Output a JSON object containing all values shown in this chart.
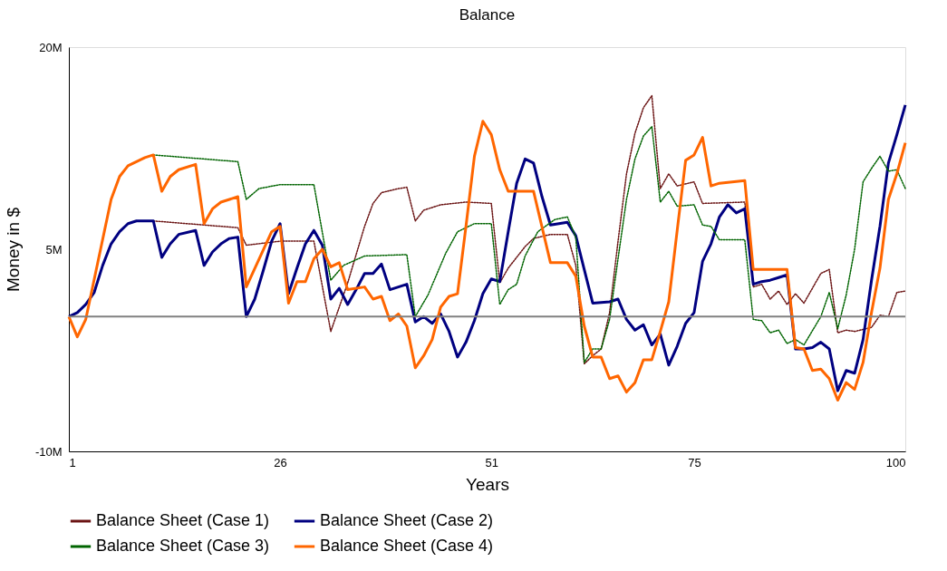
{
  "chart_data": {
    "type": "line",
    "title": "Balance",
    "xlabel": "Years",
    "ylabel": "Money in $",
    "xlim": [
      1,
      100
    ],
    "xticks": [
      1,
      26,
      51,
      75,
      100
    ],
    "ylim": [
      -10,
      20
    ],
    "yticks": [
      {
        "value": -10,
        "label": "-10M"
      },
      {
        "value": 5,
        "label": "5M"
      },
      {
        "value": 20,
        "label": "20M"
      }
    ],
    "grid": false,
    "legend": "bottom",
    "marker": "none",
    "ref_lines": [
      {
        "axis": "y",
        "value": 0,
        "label": null,
        "color": "#808080"
      }
    ],
    "series": [
      {
        "name": "Balance Sheet (Case 1)",
        "color": "#6b1414",
        "line_style": "dotted",
        "x": [
          11,
          21,
          22,
          26,
          30,
          32,
          33,
          34,
          36,
          37,
          38,
          40,
          41,
          42,
          43,
          45,
          48,
          51,
          52,
          53,
          55,
          56,
          58,
          60,
          61,
          62,
          63,
          64,
          65,
          66,
          67,
          68,
          69,
          70,
          71,
          72,
          73,
          75,
          76,
          81,
          82,
          83,
          84,
          85,
          86,
          87,
          88,
          90,
          91,
          92,
          93,
          94,
          96,
          97,
          98,
          99,
          100
        ],
        "values": [
          7.1,
          6.6,
          5.3,
          5.6,
          5.6,
          -1.1,
          0.7,
          2.5,
          6.7,
          8.4,
          9.2,
          9.5,
          9.6,
          7.1,
          7.9,
          8.3,
          8.5,
          8.4,
          2.5,
          3.6,
          5.2,
          5.8,
          6.1,
          6.1,
          3.8,
          -3.5,
          -2.9,
          -2.4,
          0.3,
          5.6,
          10.6,
          13.6,
          15.5,
          16.4,
          9.5,
          10.6,
          9.7,
          10.0,
          8.4,
          8.5,
          2.2,
          2.4,
          1.3,
          1.9,
          0.9,
          1.7,
          1.0,
          3.2,
          3.5,
          -1.2,
          -1.0,
          -1.1,
          -0.8,
          0.1,
          0,
          1.8,
          1.9
        ]
      },
      {
        "name": "Balance Sheet (Case 2)",
        "color": "#000080",
        "line_style": "solid",
        "x": [
          1,
          2,
          3,
          4,
          5,
          6,
          7,
          8,
          9,
          11,
          12,
          13,
          14,
          16,
          17,
          18,
          19,
          20,
          21,
          22,
          23,
          24,
          25,
          26,
          27,
          28,
          29,
          30,
          31,
          32,
          33,
          34,
          35,
          36,
          37,
          38,
          39,
          41,
          42,
          43,
          44,
          45,
          46,
          47,
          48,
          49,
          50,
          51,
          52,
          53,
          54,
          55,
          56,
          57,
          58,
          60,
          61,
          62,
          63,
          65,
          66,
          67,
          68,
          69,
          70,
          71,
          72,
          73,
          74,
          75,
          76,
          77,
          78,
          79,
          80,
          81,
          82,
          83,
          84,
          85,
          86,
          87,
          88,
          89,
          90,
          91,
          92,
          93,
          94,
          95,
          96,
          97,
          98,
          99,
          100
        ],
        "values": [
          0,
          0.3,
          0.9,
          1.8,
          3.8,
          5.4,
          6.3,
          6.9,
          7.1,
          7.1,
          4.4,
          5.4,
          6.1,
          6.4,
          3.8,
          4.8,
          5.4,
          5.8,
          5.9,
          0,
          1.3,
          3.4,
          5.6,
          6.9,
          1.7,
          3.6,
          5.4,
          6.4,
          5.3,
          1.3,
          2.1,
          0.9,
          2.0,
          3.2,
          3.2,
          3.9,
          2.0,
          2.4,
          -0.4,
          0,
          -0.5,
          0.2,
          -1.1,
          -3.0,
          -1.9,
          -0.3,
          1.7,
          2.8,
          2.6,
          6.3,
          9.9,
          11.7,
          11.4,
          8.9,
          6.8,
          7.0,
          6.0,
          3.5,
          1.0,
          1.1,
          1.3,
          -0.2,
          -1.0,
          -0.6,
          -2.1,
          -1.3,
          -3.6,
          -2.2,
          -0.5,
          0.3,
          4.1,
          5.4,
          7.4,
          8.3,
          7.7,
          8.0,
          2.4,
          2.6,
          2.7,
          2.9,
          3.1,
          -2.4,
          -2.4,
          -2.3,
          -1.9,
          -2.4,
          -5.5,
          -4.0,
          -4.2,
          -1.7,
          2.7,
          6.7,
          11.4,
          13.5,
          15.7
        ]
      },
      {
        "name": "Balance Sheet (Case 3)",
        "color": "#006400",
        "line_style": "dotted",
        "x": [
          11,
          21,
          22,
          23.5,
          26,
          30,
          32,
          33.5,
          36,
          41,
          42,
          43.5,
          45.6,
          47,
          49,
          51,
          52,
          53,
          54,
          55,
          56.5,
          58.5,
          60,
          61,
          62,
          63,
          64,
          65,
          66,
          67,
          68,
          69,
          70,
          71,
          72,
          73,
          75,
          76,
          77,
          78,
          81,
          82,
          83,
          84,
          85,
          86,
          87,
          88,
          90,
          91,
          92,
          93,
          94,
          95,
          96,
          97,
          98,
          99,
          100
        ],
        "values": [
          12.0,
          11.5,
          8.7,
          9.5,
          9.8,
          9.8,
          2.7,
          3.8,
          4.5,
          4.6,
          0,
          1.6,
          4.7,
          6.3,
          6.9,
          6.9,
          0.9,
          2.0,
          2.4,
          4.5,
          6.3,
          7.2,
          7.4,
          5.9,
          -3.4,
          -2.4,
          -2.4,
          -0.2,
          4.3,
          8.7,
          11.7,
          13.4,
          14.1,
          8.5,
          9.3,
          8.2,
          8.3,
          6.8,
          6.7,
          5.7,
          5.7,
          -0.2,
          -0.3,
          -1.2,
          -1.0,
          -2.0,
          -1.7,
          -2.1,
          0,
          1.8,
          -0.9,
          1.6,
          5.0,
          10.0,
          11.0,
          11.9,
          10.8,
          10.9,
          9.5
        ]
      },
      {
        "name": "Balance Sheet (Case 4)",
        "color": "#ff6600",
        "line_style": "solid",
        "x": [
          1,
          2,
          3,
          6,
          7,
          8,
          10,
          11,
          12,
          13,
          14,
          16,
          17,
          18,
          19,
          21,
          22,
          25,
          26,
          27,
          28,
          29,
          30,
          31,
          32,
          33,
          34,
          36,
          37,
          38,
          39,
          40,
          41,
          42,
          43,
          44,
          45,
          46,
          47,
          48,
          49,
          50,
          51,
          52,
          53,
          56,
          58,
          60,
          61,
          62,
          63,
          64,
          65,
          66,
          67,
          68,
          69,
          70,
          71,
          72,
          73,
          74,
          75,
          76,
          77,
          78,
          81,
          82,
          86,
          87,
          88,
          89,
          90,
          91,
          92,
          93,
          94,
          95,
          96,
          97,
          98,
          99,
          100
        ],
        "values": [
          0,
          -1.5,
          -0.2,
          8.7,
          10.4,
          11.2,
          11.8,
          12.0,
          9.3,
          10.4,
          10.9,
          11.3,
          6.9,
          8.0,
          8.5,
          8.9,
          2.2,
          6.3,
          6.7,
          1.0,
          2.6,
          2.6,
          4.3,
          5.0,
          3.7,
          4.0,
          2.0,
          2.2,
          1.3,
          1.5,
          -0.3,
          0.2,
          -0.7,
          -3.8,
          -2.9,
          -1.7,
          0.7,
          1.5,
          1.7,
          6.7,
          11.9,
          14.5,
          13.5,
          10.9,
          9.3,
          9.3,
          4.0,
          4.0,
          3.0,
          -0.7,
          -3.0,
          -3.0,
          -4.6,
          -4.4,
          -5.6,
          -4.9,
          -3.2,
          -3.2,
          -1.1,
          1.1,
          6.4,
          11.6,
          12.0,
          13.3,
          9.7,
          9.9,
          10.1,
          3.5,
          3.5,
          -2.3,
          -2.4,
          -4.0,
          -3.9,
          -4.6,
          -6.2,
          -4.9,
          -5.4,
          -3.4,
          0.3,
          3.6,
          8.7,
          10.6,
          12.9
        ]
      }
    ]
  }
}
